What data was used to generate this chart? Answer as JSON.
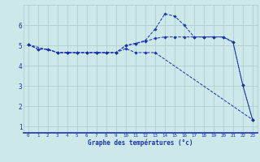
{
  "xlabel": "Graphe des températures (°c)",
  "bg_color": "#cce8e8",
  "line_color": "#1a32b4",
  "grid_color": "#aacccc",
  "xlim": [
    -0.5,
    23.5
  ],
  "ylim": [
    0.7,
    7.0
  ],
  "yticks": [
    1,
    2,
    3,
    4,
    5,
    6
  ],
  "xticks": [
    0,
    1,
    2,
    3,
    4,
    5,
    6,
    7,
    8,
    9,
    10,
    11,
    12,
    13,
    14,
    15,
    16,
    17,
    18,
    19,
    20,
    21,
    22,
    23
  ],
  "series1_x": [
    0,
    1,
    2,
    3,
    4,
    5,
    6,
    7,
    8,
    9,
    10,
    11,
    12,
    13,
    14,
    15,
    16,
    17,
    18,
    19,
    20,
    21,
    22,
    23
  ],
  "series1_y": [
    5.05,
    4.82,
    4.82,
    4.65,
    4.65,
    4.65,
    4.65,
    4.65,
    4.65,
    4.65,
    5.0,
    5.1,
    5.2,
    5.35,
    5.42,
    5.42,
    5.42,
    5.42,
    5.42,
    5.42,
    5.42,
    5.15,
    3.05,
    1.35
  ],
  "series2_x": [
    0,
    1,
    2,
    3,
    4,
    5,
    6,
    7,
    8,
    9,
    10,
    11,
    12,
    13,
    14,
    15,
    16,
    17,
    18,
    19,
    20,
    21,
    22,
    23
  ],
  "series2_y": [
    5.05,
    4.82,
    4.82,
    4.65,
    4.65,
    4.65,
    4.65,
    4.65,
    4.65,
    4.65,
    5.0,
    5.1,
    5.25,
    5.8,
    6.55,
    6.45,
    6.0,
    5.42,
    5.42,
    5.42,
    5.42,
    5.18,
    3.05,
    1.35
  ],
  "series3_x": [
    0,
    3,
    4,
    5,
    6,
    7,
    8,
    9,
    10,
    11,
    12,
    13,
    23
  ],
  "series3_y": [
    5.05,
    4.65,
    4.65,
    4.65,
    4.65,
    4.65,
    4.65,
    4.65,
    4.85,
    4.65,
    4.65,
    4.65,
    1.35
  ]
}
